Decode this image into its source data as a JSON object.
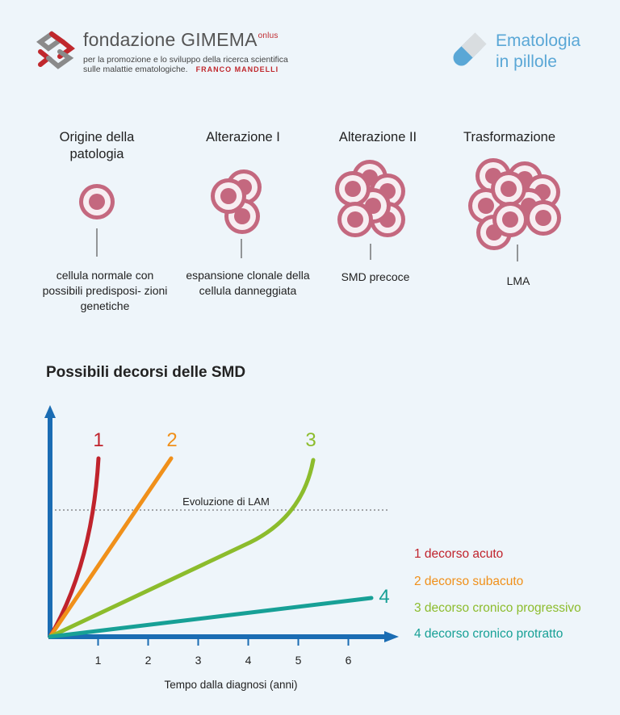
{
  "header": {
    "brand": "fondazione GIMEMA",
    "brand_suffix": "onlus",
    "tagline_1": "per la promozione e lo sviluppo della ricerca scientifica",
    "tagline_2": "sulle malattie ematologiche.",
    "founder": "FRANCO MANDELLI",
    "series_title_1": "Ematologia",
    "series_title_2": "in pillole"
  },
  "stages": [
    {
      "title": "Origine della patologia",
      "desc": "cellula normale con possibili predisposi- zioni  genetiche"
    },
    {
      "title": "Alterazione I",
      "desc": "espansione clonale della cellula danneggiata"
    },
    {
      "title": "Alterazione II",
      "desc": "SMD precoce"
    },
    {
      "title": "Trasformazione",
      "desc": "LMA"
    }
  ],
  "chart_title": "Possibili decorsi delle SMD",
  "chart_data": {
    "type": "line",
    "title": "Possibili decorsi delle SMD",
    "xlabel": "Tempo dalla diagnosi (anni)",
    "ylabel": "",
    "x_ticks": [
      "1",
      "2",
      "3",
      "4",
      "5",
      "6"
    ],
    "threshold_label": "Evoluzione di LAM",
    "series": [
      {
        "name": "1",
        "legend": "1 decorso acuto",
        "color": "#c0232c"
      },
      {
        "name": "2",
        "legend": "2 decorso subacuto",
        "color": "#f0901a"
      },
      {
        "name": "3",
        "legend": "3 decorso cronico progressivo",
        "color": "#8cbc2c"
      },
      {
        "name": "4",
        "legend": "4 decorso cronico protratto",
        "color": "#17a096"
      }
    ]
  },
  "colors": {
    "axis": "#1a6cb3",
    "cell_ring": "#c4687f",
    "cell_nucleus": "#c4687f",
    "cell_fill": "#f7eef2",
    "pill_accent": "#5aa7d6",
    "brand_red": "#c0282d"
  }
}
